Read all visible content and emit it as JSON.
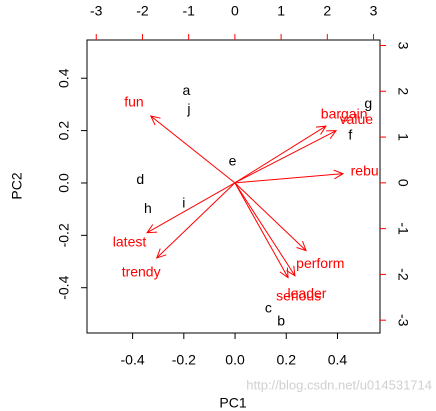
{
  "chart_data": {
    "type": "biplot",
    "xlabel": "PC1",
    "ylabel": "PC2",
    "xlim": [
      -0.578,
      0.566
    ],
    "ylim": [
      -0.573,
      0.546
    ],
    "xticks": [
      -0.4,
      -0.2,
      {
        "value": 0,
        "label": "0.0"
      },
      0.2,
      0.4
    ],
    "yticks": [
      -0.4,
      -0.2,
      {
        "value": 0,
        "label": "0.0"
      },
      0.2,
      0.4
    ],
    "x2lim": [
      -3.2,
      3.14
    ],
    "y2lim": [
      -3.28,
      3.12
    ],
    "x2ticks": [
      -3,
      -2,
      -1,
      0,
      1,
      2,
      3
    ],
    "y2ticks": [
      -3,
      -2,
      -1,
      0,
      1,
      2,
      3
    ],
    "points": {
      "color": "#000000",
      "labels": [
        "a",
        "j",
        "e",
        "d",
        "h",
        "i",
        "c",
        "b",
        "g",
        "f"
      ],
      "x": [
        -0.19,
        -0.18,
        -0.01,
        -0.37,
        -0.34,
        -0.2,
        0.13,
        0.18,
        0.52,
        0.45
      ],
      "y": [
        0.35,
        0.28,
        0.08,
        0.01,
        -0.1,
        -0.08,
        -0.48,
        -0.53,
        0.3,
        0.18
      ]
    },
    "arrows": {
      "color": "#ff0000",
      "labels": [
        "fun",
        "latest",
        "trendy",
        "bargain",
        "value",
        "rebu",
        "perform",
        "leader",
        "serious"
      ],
      "x": [
        -1.82,
        -1.9,
        -1.69,
        1.97,
        2.19,
        2.34,
        1.54,
        1.3,
        1.15
      ],
      "y": [
        1.46,
        -1.09,
        -1.64,
        1.24,
        1.14,
        0.2,
        -1.48,
        -2.03,
        -2.07
      ]
    },
    "annotation": "http://blog.csdn.net/u014531714"
  }
}
